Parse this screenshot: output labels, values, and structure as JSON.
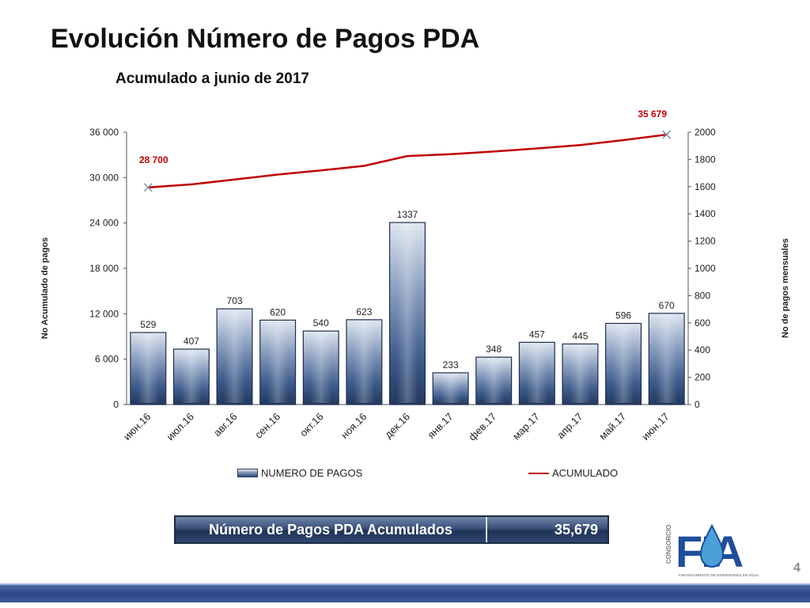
{
  "slide": {
    "title": "Evolución Número de Pagos PDA",
    "subtitle": "Acumulado a junio de 2017",
    "page_number": "4"
  },
  "summary": {
    "label": "Número de Pagos PDA Acumulados",
    "value": "35,679"
  },
  "logo": {
    "side_text": "CONSORCIO",
    "letters": "FIA",
    "tagline": "FINANCIAMIENTO DE INVERSIONES EN AGUA"
  },
  "colors": {
    "bar_dark": "#2e4a77",
    "bar_light": "#dfe6f0",
    "line": "#c00000",
    "footer": "#2b4687"
  },
  "chart_data": {
    "type": "bar+line",
    "title": "",
    "categories": [
      "июн.16",
      "июл.16",
      "авг.16",
      "сен.16",
      "окт.16",
      "ноя.16",
      "дек.16",
      "янв.17",
      "фев.17",
      "мар.17",
      "апр.17",
      "май.17",
      "июн.17"
    ],
    "series": [
      {
        "name": "NUMERO DE PAGOS",
        "type": "bar",
        "axis": "right",
        "values": [
          529,
          407,
          703,
          620,
          540,
          623,
          1337,
          233,
          348,
          457,
          445,
          596,
          670
        ],
        "labels": [
          "529",
          "407",
          "703",
          "620",
          "540",
          "623",
          "1337",
          "233",
          "348",
          "457",
          "445",
          "596",
          "670"
        ]
      },
      {
        "name": "ACUMULADO",
        "type": "line",
        "axis": "left",
        "values": [
          28700,
          29100,
          29750,
          30400,
          30950,
          31550,
          32850,
          33100,
          33450,
          33850,
          34300,
          34950,
          35679
        ],
        "labels": [
          "28 700",
          "",
          "",
          "",
          "",
          "",
          "",
          "",
          "",
          "",
          "",
          "",
          "35 679"
        ]
      }
    ],
    "y_left": {
      "label": "No Acumulado de pagos",
      "range": [
        0,
        36000
      ],
      "ticks": [
        0,
        6000,
        12000,
        18000,
        24000,
        30000,
        36000
      ],
      "tick_labels": [
        "0",
        "6 000",
        "12 000",
        "18 000",
        "24 000",
        "30 000",
        "36 000"
      ]
    },
    "y_right": {
      "label": "No de pagos mensuales",
      "range": [
        0,
        2000
      ],
      "ticks": [
        0,
        200,
        400,
        600,
        800,
        1000,
        1200,
        1400,
        1600,
        1800,
        2000
      ],
      "tick_labels": [
        "0",
        "200",
        "400",
        "600",
        "800",
        "1000",
        "1200",
        "1400",
        "1600",
        "1800",
        "2000"
      ]
    },
    "legend_position": "bottom",
    "grid": false
  }
}
